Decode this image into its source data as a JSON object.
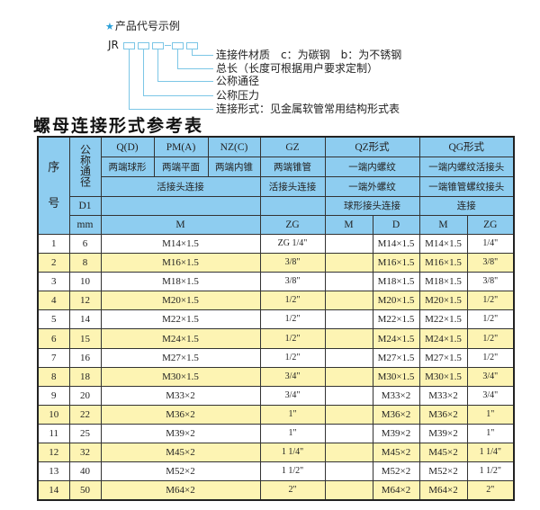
{
  "diagram": {
    "star_icon": "star-icon",
    "title": "产品代号示例",
    "code_prefix": "JR",
    "dash": "-",
    "labels": [
      "连接件材质　c：为碳钢　b：为不锈钢",
      "总长（长度可根据用户要求定制）",
      "公称通径",
      "公称压力",
      "连接形式：见金属软管常用结构形式表"
    ]
  },
  "table_title": "螺母连接形式参考表",
  "colors": {
    "header_bg": "#8ecdf0",
    "alt_row_bg": "#fdf4b3",
    "accent": "#2aa0d8"
  },
  "header": {
    "seq": [
      "序",
      "号"
    ],
    "nominal_diameter": "公称通径",
    "d1": "D1",
    "mm": "mm",
    "types": [
      "Q(D)",
      "PM(A)",
      "NZ(C)",
      "GZ",
      "QZ形式",
      "QG形式"
    ],
    "shapes": [
      "两端球形",
      "两端平面",
      "两端内锥",
      "两端锥管",
      "一端内螺纹",
      "一端内螺纹活接头"
    ],
    "conn_row": [
      "活接头连接",
      "活接头连接",
      "一端外螺纹",
      "一端锥管螺纹接头"
    ],
    "conn_row2": [
      "",
      "",
      "球形接头连接",
      "连接"
    ],
    "units": [
      "M",
      "ZG",
      "M",
      "D",
      "M",
      "ZG"
    ]
  },
  "rows": [
    {
      "seq": "1",
      "dn": "6",
      "m": "M14×1.5",
      "zg": "ZG 1/4\"",
      "qz_m": "",
      "qz_d": "M14×1.5",
      "qg_m": "M14×1.5",
      "qg_zg": "1/4\""
    },
    {
      "seq": "2",
      "dn": "8",
      "m": "M16×1.5",
      "zg": "3/8\"",
      "qz_m": "",
      "qz_d": "M16×1.5",
      "qg_m": "M16×1.5",
      "qg_zg": "3/8\""
    },
    {
      "seq": "3",
      "dn": "10",
      "m": "M18×1.5",
      "zg": "3/8\"",
      "qz_m": "",
      "qz_d": "M18×1.5",
      "qg_m": "M18×1.5",
      "qg_zg": "3/8\""
    },
    {
      "seq": "4",
      "dn": "12",
      "m": "M20×1.5",
      "zg": "1/2\"",
      "qz_m": "",
      "qz_d": "M20×1.5",
      "qg_m": "M20×1.5",
      "qg_zg": "1/2\""
    },
    {
      "seq": "5",
      "dn": "14",
      "m": "M22×1.5",
      "zg": "1/2\"",
      "qz_m": "",
      "qz_d": "M22×1.5",
      "qg_m": "M22×1.5",
      "qg_zg": "1/2\""
    },
    {
      "seq": "6",
      "dn": "15",
      "m": "M24×1.5",
      "zg": "1/2\"",
      "qz_m": "",
      "qz_d": "M24×1.5",
      "qg_m": "M24×1.5",
      "qg_zg": "1/2\""
    },
    {
      "seq": "7",
      "dn": "16",
      "m": "M27×1.5",
      "zg": "1/2\"",
      "qz_m": "",
      "qz_d": "M27×1.5",
      "qg_m": "M27×1.5",
      "qg_zg": "1/2\""
    },
    {
      "seq": "8",
      "dn": "18",
      "m": "M30×1.5",
      "zg": "3/4\"",
      "qz_m": "",
      "qz_d": "M30×1.5",
      "qg_m": "M30×1.5",
      "qg_zg": "3/4\""
    },
    {
      "seq": "9",
      "dn": "20",
      "m": "M33×2",
      "zg": "3/4\"",
      "qz_m": "",
      "qz_d": "M33×2",
      "qg_m": "M33×2",
      "qg_zg": "3/4\""
    },
    {
      "seq": "10",
      "dn": "22",
      "m": "M36×2",
      "zg": "1\"",
      "qz_m": "",
      "qz_d": "M36×2",
      "qg_m": "M36×2",
      "qg_zg": "1\""
    },
    {
      "seq": "11",
      "dn": "25",
      "m": "M39×2",
      "zg": "1\"",
      "qz_m": "",
      "qz_d": "M39×2",
      "qg_m": "M39×2",
      "qg_zg": "1\""
    },
    {
      "seq": "12",
      "dn": "32",
      "m": "M45×2",
      "zg": "1 1/4\"",
      "qz_m": "",
      "qz_d": "M45×2",
      "qg_m": "M45×2",
      "qg_zg": "1 1/4\""
    },
    {
      "seq": "13",
      "dn": "40",
      "m": "M52×2",
      "zg": "1 1/2\"",
      "qz_m": "",
      "qz_d": "M52×2",
      "qg_m": "M52×2",
      "qg_zg": "1 1/2\""
    },
    {
      "seq": "14",
      "dn": "50",
      "m": "M64×2",
      "zg": "2\"",
      "qz_m": "",
      "qz_d": "M64×2",
      "qg_m": "M64×2",
      "qg_zg": "2\""
    }
  ]
}
